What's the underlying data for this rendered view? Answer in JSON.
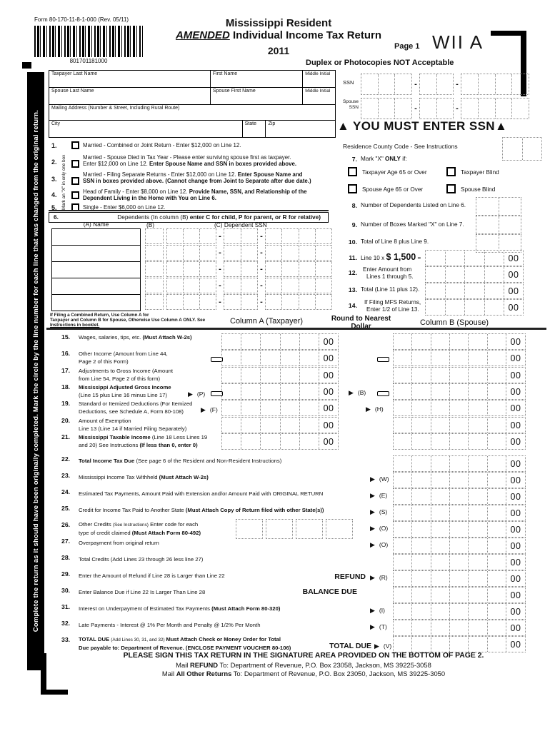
{
  "misc": {
    "cents": "00",
    "dash": "-",
    "arrow": "▶"
  },
  "header": {
    "form_number": "Form 80-170-11-8-1-000 (Rev. 05/11)",
    "barcode_number": "801701181000",
    "title1": "Mississippi Resident",
    "amended": "AMENDED",
    "title2": " Individual Income Tax Return",
    "year": "2011",
    "page": "Page 1",
    "wii": "WII A",
    "duplex": "Duplex or Photocopies NOT Acceptable"
  },
  "sidebar": {
    "text": "Complete the return as it should have been originally completed.  Mark the circle by the line number for each line that was changed from the original return."
  },
  "name_box": {
    "taxpayer_last": "Taxpayer Last Name",
    "first": "First Name",
    "mi": "Middle Initial",
    "spouse_last": "Spouse Last Name",
    "spouse_first": "Spouse First Name",
    "mi2": "Middle Initial",
    "mailing": "Mailing Address (Number & Street, Including Rural Route)",
    "city": "City",
    "state": "State",
    "zip": "Zip"
  },
  "ssn": {
    "label": "SSN",
    "spouse1": "Spouse",
    "spouse2": "SSN",
    "must_enter": "▲ YOU MUST ENTER SSN▲",
    "residence": "Residence  County Code -  See Instructions"
  },
  "filing": {
    "side_note": "Mark an \"X\" in only one box",
    "items": [
      {
        "num": "1.",
        "r1n": "Married - Combined or Joint Return - Enter $12,000 on Line 12."
      },
      {
        "num": "2.",
        "r1n": "Married - Spouse Died in Tax Year - Please enter surviving spouse first as taxpayer.",
        "r2n": "Enter $12,000 on Line 12. ",
        "r2b": "Enter Spouse Name and SSN in boxes provided above."
      },
      {
        "num": "3.",
        "r1n": "Married - Filing Separate Returns - Enter $12,000 on Line 12.  ",
        "r1b": "Enter Spouse Name and",
        "r2b": "SSN in boxes provided above.  (Cannot change from Joint to Separate after due date.)"
      },
      {
        "num": "4.",
        "r1n": "Head of Family - Enter $8,000 on Line 12.   ",
        "r1b": "Provide Name, SSN, and Relationship of the",
        "r2b": "Dependent Living in the Home with You on Line 6."
      },
      {
        "num": "5.",
        "r1n": "Single - Enter $6,000 on Line 12."
      }
    ]
  },
  "dependents": {
    "num": "6.",
    "title_pre": "Dependents (In column (B) ",
    "title_bold": "enter C for child, P for parent, or R for relative)",
    "col_a": "(A) Name",
    "col_b": "(B)",
    "col_c": "(C)  Dependent SSN",
    "note1": "If Filing a Combined Return, Use Column A for",
    "note2": "Taxpayer and Column B for Spouse, Otherwise Use Column A ONLY.  See",
    "note3": "Instructions in booklet.",
    "col_a_label": "Column A (Taxpayer)"
  },
  "right": {
    "item7": {
      "num": "7.",
      "pre": "Mark \"X\" ",
      "bold": "ONLY",
      "post": " if:",
      "cb1": "Taxpayer Age 65 or Over",
      "cb2": "Taxpayer Blind",
      "cb3": "Spouse Age 65 or Over",
      "cb4": "Spouse Blind"
    },
    "item8": {
      "num": "8.",
      "label": "Number of Dependents Listed on Line 6."
    },
    "item9": {
      "num": "9.",
      "label": "Number of Boxes Marked \"X\" on Line 7."
    },
    "item10": {
      "num": "10.",
      "label": "Total of Line 8 plus Line 9."
    },
    "item11": {
      "num": "11.",
      "pre": "Line 10 x ",
      "amount": "$ 1,500",
      "post": " ="
    },
    "item12": {
      "num": "12.",
      "l1": "Enter Amount from",
      "l2": "Lines 1 through 5."
    },
    "item13": {
      "num": "13.",
      "label": "Total (Line 11 plus 12)."
    },
    "item14": {
      "num": "14.",
      "l1": "If Filing MFS Returns,",
      "l2": "Enter 1/2 of Line 13."
    }
  },
  "columns": {
    "round1": "Round to Nearest",
    "round2": "Dollar",
    "col_b_label": "Column B (Spouse)"
  },
  "linesAB": [
    {
      "num": "15.",
      "r1n": "Wages, salaries, tips, etc. ",
      "r1b2": "(Must Attach W-2s)"
    },
    {
      "num": "16.",
      "r1n": "Other  Income (Amount from Line 44,",
      "r2n": "Page 2 of  this Form)"
    },
    {
      "num": "17.",
      "r1n": "Adjustments to Gross Income (Amount",
      "r2n": "from Line 54, Page 2 of  this form)"
    },
    {
      "num": "18.",
      "r1b": "Mississippi Adjusted Gross Income",
      "r2n": "(Line 15 plus Line 16 minus Line 17)",
      "aA": "(P)",
      "aMid": "(B)"
    },
    {
      "num": "19.",
      "r1n": "Standard or Itemized Deductions (For Itemized",
      "r2n": " Deductions, see Schedule A, Form 80-108)",
      "aA": "(F)",
      "aMid": "(H)"
    },
    {
      "num": "20.",
      "r1n": "Amount of Exemption",
      "r2n": "Line 13  (Line 14 if Married Filing Separately)"
    },
    {
      "num": "21.",
      "r1b": "Mississippi Taxable Income ",
      "r1n": "(Line 18 Less Lines 19",
      "r2n": "and 20) See Instructions ",
      "r2b2": "(If less than 0, enter 0)"
    }
  ],
  "linesFull": [
    {
      "num": "22.",
      "r1b1": "Total Income Tax Due",
      "r1n": " (See page 6 of the Resident and Non-Resident Instructions)"
    },
    {
      "num": "23.",
      "r1n": "Mississippi Income Tax Withheld ",
      "r1b2": "(Must Attach W-2s)",
      "arrow": "(W)"
    },
    {
      "num": "24.",
      "r1n": "Estimated Tax Payments, Amount Paid with Extension and/or Amount Paid with ORIGINAL RETURN",
      "arrow": "(E)"
    },
    {
      "num": "25.",
      "r1n": "Credit for Income Tax Paid to Another State ",
      "r1b2": "(Must Attach Copy  of  Return filed with other State(s))",
      "arrow": "(S)"
    },
    {
      "num": "26.",
      "r1n": "Other Credits ",
      "r1sm": "(See Instructions)",
      "r1n2": " Enter code for each",
      "r2n": " type of credit claimed ",
      "r2b2": "(Must Attach Form 80-492)",
      "arrow": "(O)"
    },
    {
      "num": "27.",
      "r1n": "Overpayment from original return",
      "arrow": "(O)"
    },
    {
      "num": "28.",
      "r1n": "Total Credits (Add Lines 23 through 26 less line 27)"
    },
    {
      "num": "29.",
      "r1n": "Enter the Amount of Refund if Line 28  is Larger  than Line 22",
      "tag": "REFUND",
      "arrow": "(R)"
    },
    {
      "num": "30.",
      "r1n": "Enter Balance Due if Line 22 Is Larger Than Line 28",
      "tag": "BALANCE DUE"
    },
    {
      "num": "31.",
      "r1n": "Interest on Underpayment of Estimated Tax Payments ",
      "r1b2": "(Must Attach Form 80-320)",
      "arrow": "(I)"
    },
    {
      "num": "32.",
      "r1n": "Late Payments - Interest @ 1% Per Month and Penalty @ 1/2% Per Month",
      "arrow": "(T)"
    },
    {
      "num": "33.",
      "r1b1": "TOTAL DUE ",
      "r1sm": "(Add Lines 30, 31, and 32)  ",
      "r1b2": "Must Attach Check or Money Order  for Total",
      "r2b1": "Due payable to:  Department of Revenue.  (ENCLOSE  PAYMENT  VOUCHER 80-106)",
      "tag": "TOTAL DUE",
      "arrow": "(V)"
    }
  ],
  "footer": {
    "sign": "PLEASE SIGN THIS TAX RETURN IN THE SIGNATURE AREA PROVIDED ON THE BOTTOM OF PAGE 2.",
    "m1a": "Mail ",
    "m1b": "REFUND",
    "m1c": " To: Department of Revenue, P.O. Box 23058, Jackson, MS 39225-3058",
    "m2a": "Mail ",
    "m2b": "All Other Returns",
    "m2c": " To: Department of Revenue, P.O. Box 23050, Jackson, MS 39225-3050"
  }
}
